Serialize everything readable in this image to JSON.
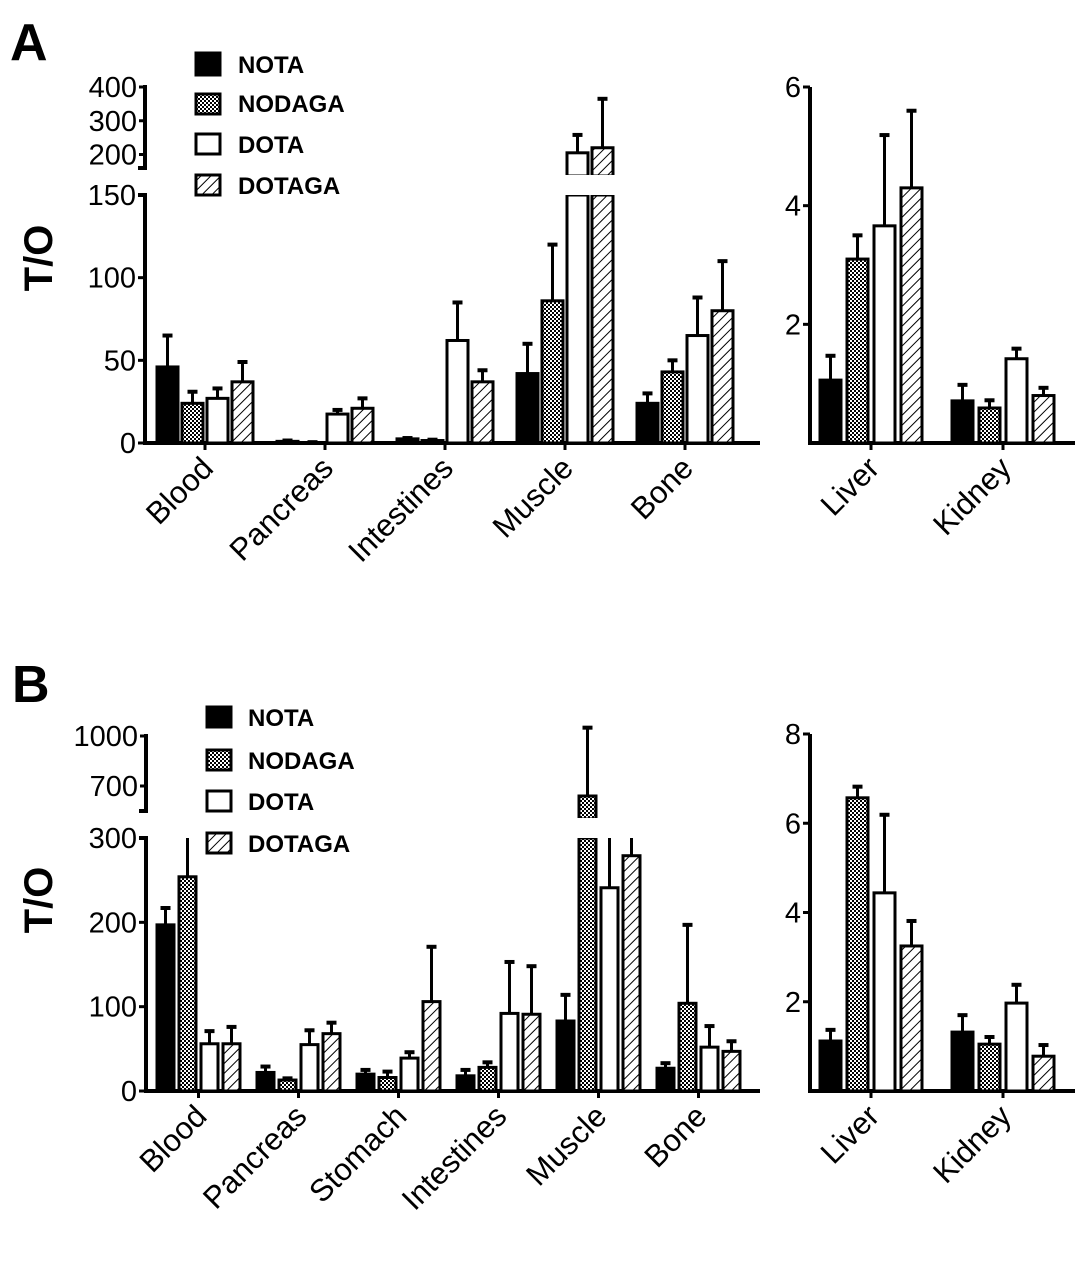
{
  "series_names": [
    "NOTA",
    "NODAGA",
    "DOTA",
    "DOTAGA"
  ],
  "series_fills": [
    "solid-black",
    "checker",
    "white",
    "hatch"
  ],
  "colors": {
    "ink": "#000000",
    "paper": "#ffffff"
  },
  "chart_data": [
    {
      "id": "A-left",
      "panel": "A",
      "type": "bar",
      "ylabel": "T/O",
      "broken_axis": true,
      "lower_range": [
        0,
        150
      ],
      "upper_range": [
        160,
        400
      ],
      "lower_ticks": [
        0,
        50,
        100,
        150
      ],
      "upper_ticks": [
        200,
        300,
        400
      ],
      "categories": [
        "Blood",
        "Pancreas",
        "Intestines",
        "Muscle",
        "Bone"
      ],
      "series": [
        {
          "name": "NOTA",
          "values": [
            46,
            1,
            2.5,
            42,
            24
          ],
          "error": [
            65,
            1.5,
            3,
            60,
            30
          ]
        },
        {
          "name": "NODAGA",
          "values": [
            24,
            0.3,
            1.5,
            86,
            43
          ],
          "error": [
            31,
            0.5,
            2,
            120,
            50
          ]
        },
        {
          "name": "DOTA",
          "values": [
            27,
            17.5,
            62,
            205,
            65
          ],
          "error": [
            33,
            20,
            85,
            258,
            88
          ]
        },
        {
          "name": "DOTAGA",
          "values": [
            37,
            21,
            37,
            220,
            80
          ],
          "error": [
            49,
            27,
            44,
            365,
            110
          ]
        }
      ],
      "legend": "top-left"
    },
    {
      "id": "A-right",
      "panel": "A",
      "type": "bar",
      "ylabel": "",
      "ylim": [
        0,
        6
      ],
      "ticks": [
        2,
        4,
        6
      ],
      "categories": [
        "Liver",
        "Kidney"
      ],
      "series": [
        {
          "name": "NOTA",
          "values": [
            1.06,
            0.71
          ],
          "error": [
            1.47,
            0.98
          ]
        },
        {
          "name": "NODAGA",
          "values": [
            3.1,
            0.59
          ],
          "error": [
            3.5,
            0.72
          ]
        },
        {
          "name": "DOTA",
          "values": [
            3.66,
            1.42
          ],
          "error": [
            5.19,
            1.59
          ]
        },
        {
          "name": "DOTAGA",
          "values": [
            4.3,
            0.8
          ],
          "error": [
            5.6,
            0.93
          ]
        }
      ]
    },
    {
      "id": "B-left",
      "panel": "B",
      "type": "bar",
      "ylabel": "T/O",
      "broken_axis": true,
      "lower_range": [
        0,
        300
      ],
      "upper_range": [
        550,
        1100
      ],
      "lower_ticks": [
        0,
        100,
        200,
        300
      ],
      "upper_ticks": [
        700,
        1000
      ],
      "categories": [
        "Blood",
        "Pancreas",
        "Stomach",
        "Intestines",
        "Muscle",
        "Bone"
      ],
      "series": [
        {
          "name": "NOTA",
          "values": [
            197,
            22,
            20,
            18,
            83,
            27
          ],
          "error": [
            217,
            29,
            25,
            25,
            114,
            33
          ]
        },
        {
          "name": "NODAGA",
          "values": [
            254,
            13,
            16,
            28,
            640,
            104
          ],
          "error": [
            300,
            15,
            23,
            34,
            1050,
            197
          ]
        },
        {
          "name": "DOTA",
          "values": [
            56,
            55,
            39,
            92,
            241,
            52
          ],
          "error": [
            71,
            72,
            46,
            153,
            300,
            77
          ]
        },
        {
          "name": "DOTAGA",
          "values": [
            56,
            68,
            106,
            91,
            279,
            47
          ],
          "error": [
            76,
            81,
            171,
            148,
            300,
            59
          ]
        }
      ],
      "legend": "top-left"
    },
    {
      "id": "B-right",
      "panel": "B",
      "type": "bar",
      "ylabel": "",
      "ylim": [
        0,
        8
      ],
      "ticks": [
        2,
        4,
        6,
        8
      ],
      "categories": [
        "Liver",
        "Kidney"
      ],
      "series": [
        {
          "name": "NOTA",
          "values": [
            1.12,
            1.32
          ],
          "error": [
            1.37,
            1.7
          ]
        },
        {
          "name": "NODAGA",
          "values": [
            6.57,
            1.05
          ],
          "error": [
            6.82,
            1.21
          ]
        },
        {
          "name": "DOTA",
          "values": [
            4.44,
            1.97
          ],
          "error": [
            6.19,
            2.38
          ]
        },
        {
          "name": "DOTAGA",
          "values": [
            3.25,
            0.78
          ],
          "error": [
            3.81,
            1.03
          ]
        }
      ]
    }
  ],
  "panels": {
    "A": "A",
    "B": "B"
  },
  "ylabel": "T/O"
}
